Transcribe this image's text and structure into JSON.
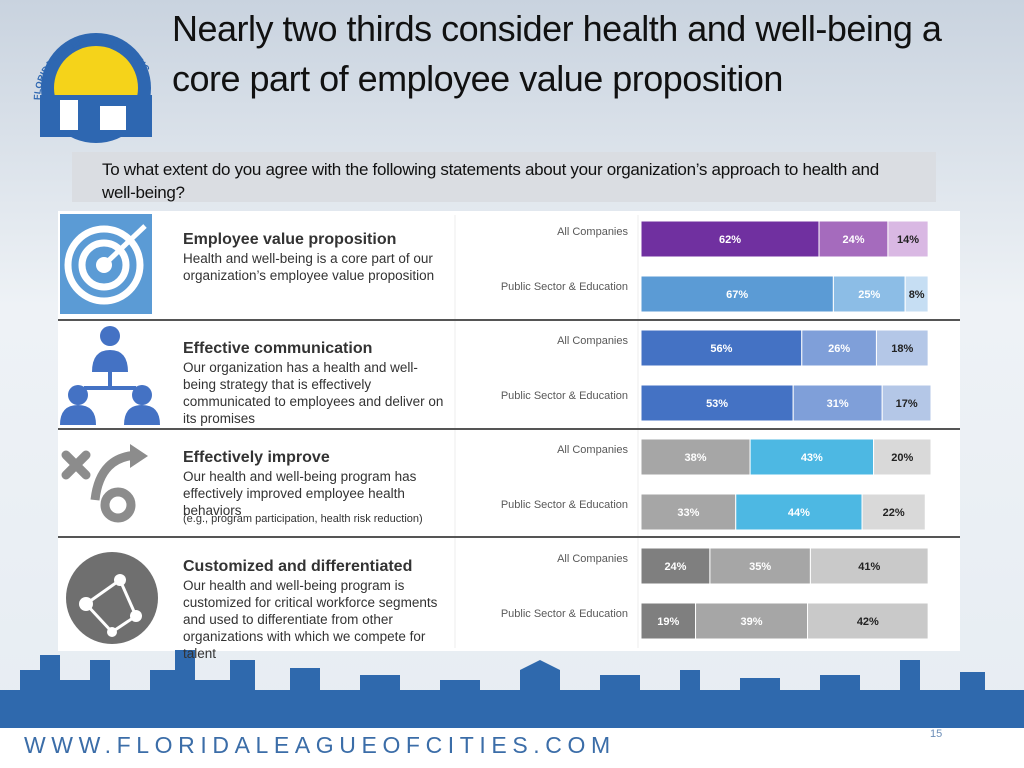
{
  "title": "Nearly two thirds consider health and well-being a core part of employee value proposition",
  "question": "To what extent do you agree with the following statements about your organization’s approach to health and well-being?",
  "logo_text": "FLORIDA LEAGUE OF CITIES, INC.",
  "footer": "WWW.FLORIDALEAGUEOFCITIES.COM",
  "page_number": "15",
  "chart_data": [
    {
      "type": "bar",
      "stacked": true,
      "title": "Employee value proposition",
      "subtitle": "Health and well-being is a core part of our organization’s employee value proposition",
      "categories": [
        "All Companies",
        "Public Sector & Education"
      ],
      "xlim": [
        0,
        101
      ],
      "series": [
        {
          "colors": [
            "#7030a0",
            "#5b9bd5"
          ],
          "values": [
            62,
            67
          ],
          "value_labels": [
            "62%",
            "67%"
          ]
        },
        {
          "colors": [
            "#a56bbd",
            "#8cbde6"
          ],
          "values": [
            24,
            25
          ],
          "value_labels": [
            "24%",
            "25%"
          ]
        },
        {
          "colors": [
            "#d9b8e3",
            "#c6def3"
          ],
          "values": [
            14,
            8
          ],
          "value_labels": [
            "14%",
            "8%"
          ]
        }
      ]
    },
    {
      "type": "bar",
      "stacked": true,
      "title": "Effective communication",
      "subtitle": "Our organization has a health and well-being strategy that is effectively communicated to employees and deliver on its promises",
      "categories": [
        "All Companies",
        "Public Sector & Education"
      ],
      "xlim": [
        0,
        101
      ],
      "series": [
        {
          "colors": [
            "#4472c4",
            "#4472c4"
          ],
          "values": [
            56,
            53
          ],
          "value_labels": [
            "56%",
            "53%"
          ]
        },
        {
          "colors": [
            "#7f9fd9",
            "#7f9fd9"
          ],
          "values": [
            26,
            31
          ],
          "value_labels": [
            "26%",
            "31%"
          ]
        },
        {
          "colors": [
            "#b4c7e7",
            "#b4c7e7"
          ],
          "values": [
            18,
            17
          ],
          "value_labels": [
            "18%",
            "17%"
          ]
        }
      ]
    },
    {
      "type": "bar",
      "stacked": true,
      "title": "Effectively improve",
      "subtitle": "Our health and well-being program has effectively improved employee health behaviors",
      "note": "(e.g., program participation, health risk reduction)",
      "categories": [
        "All Companies",
        "Public Sector & Education"
      ],
      "xlim": [
        0,
        101
      ],
      "series": [
        {
          "colors": [
            "#a6a6a6",
            "#a6a6a6"
          ],
          "values": [
            38,
            33
          ],
          "value_labels": [
            "38%",
            "33%"
          ]
        },
        {
          "colors": [
            "#4db8e3",
            "#4db8e3"
          ],
          "values": [
            43,
            44
          ],
          "value_labels": [
            "43%",
            "44%"
          ]
        },
        {
          "colors": [
            "#d9d9d9",
            "#d9d9d9"
          ],
          "values": [
            20,
            22
          ],
          "value_labels": [
            "20%",
            "22%"
          ]
        }
      ]
    },
    {
      "type": "bar",
      "stacked": true,
      "title": "Customized and differentiated",
      "subtitle": "Our health and well-being program is customized for critical workforce segments and used to differentiate from other organizations with which we compete for talent",
      "categories": [
        "All Companies",
        "Public Sector & Education"
      ],
      "xlim": [
        0,
        101
      ],
      "series": [
        {
          "colors": [
            "#7f7f7f",
            "#7f7f7f"
          ],
          "values": [
            24,
            19
          ],
          "value_labels": [
            "24%",
            "19%"
          ]
        },
        {
          "colors": [
            "#a6a6a6",
            "#a6a6a6"
          ],
          "values": [
            35,
            39
          ],
          "value_labels": [
            "35%",
            "39%"
          ]
        },
        {
          "colors": [
            "#c9c9c9",
            "#c9c9c9"
          ],
          "values": [
            41,
            42
          ],
          "value_labels": [
            "41%",
            "42%"
          ]
        }
      ]
    }
  ]
}
